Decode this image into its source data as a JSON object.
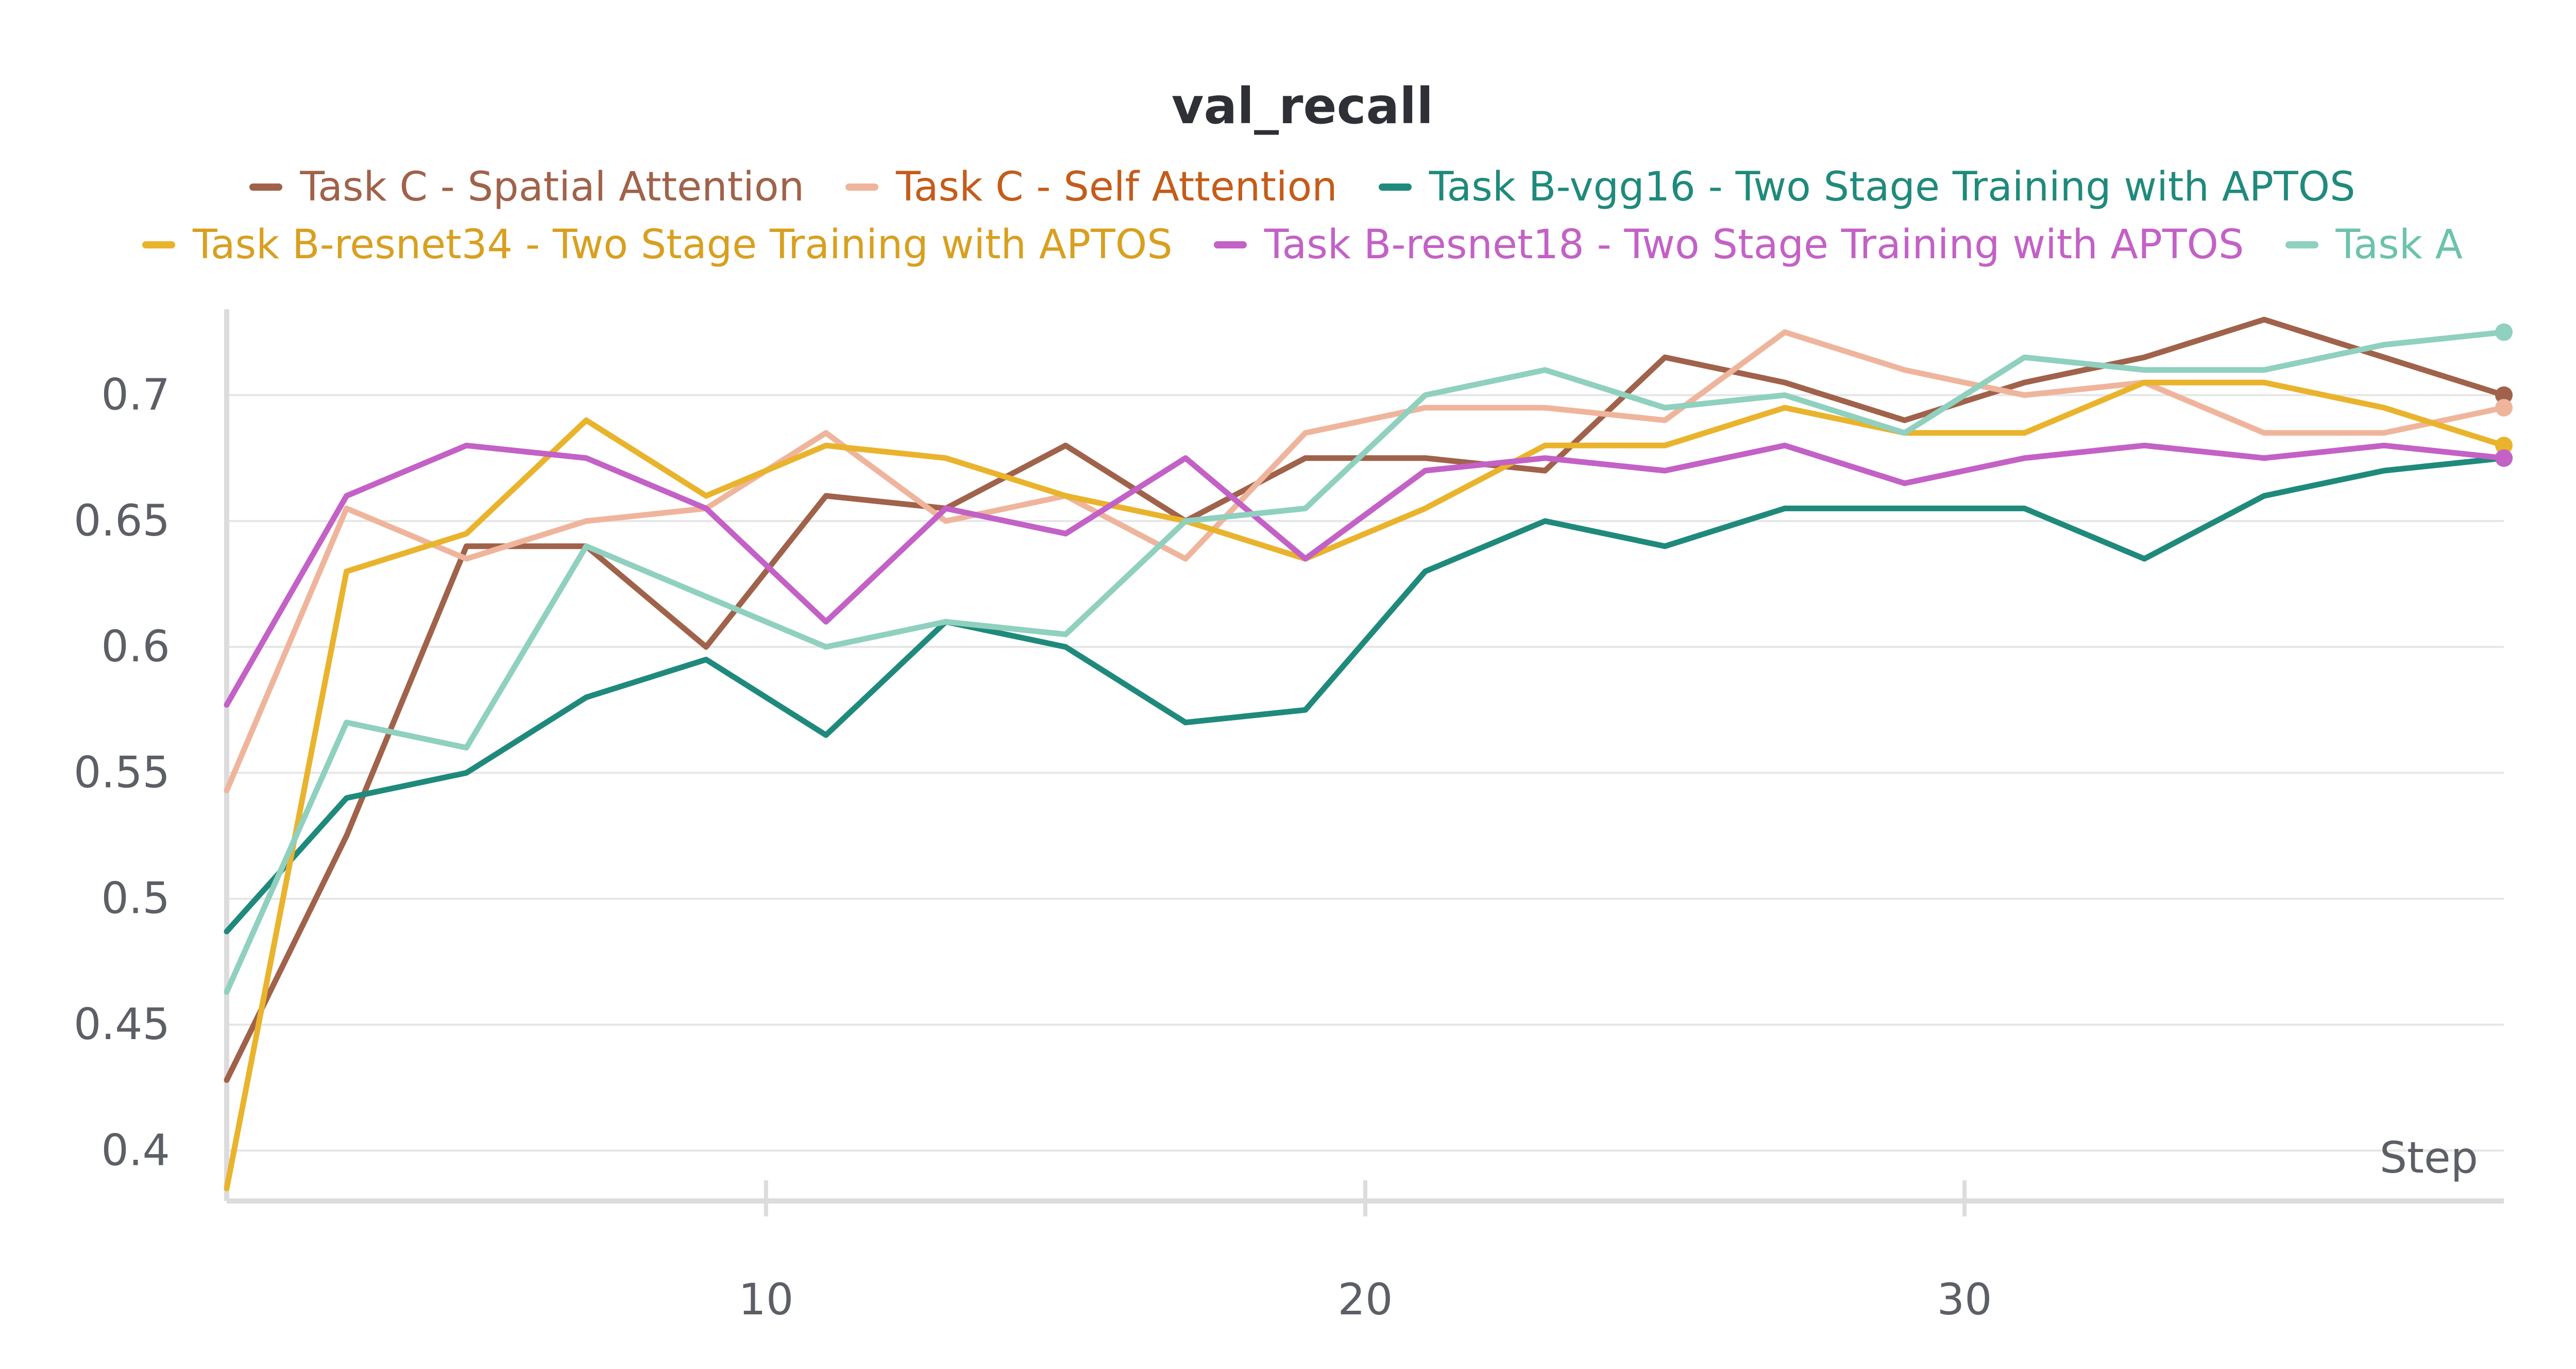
{
  "chart_data": {
    "type": "line",
    "title": "val_recall",
    "xlabel": "Step",
    "ylabel": "",
    "xlim": [
      1,
      39
    ],
    "ylim": [
      0.38,
      0.73
    ],
    "x_ticks": [
      10,
      20,
      30
    ],
    "y_ticks": [
      0.4,
      0.45,
      0.5,
      0.55,
      0.6,
      0.65,
      0.7
    ],
    "y_tick_labels": [
      "0.4",
      "0.45",
      "0.5",
      "0.55",
      "0.6",
      "0.65",
      "0.7"
    ],
    "grid": true,
    "legend_position": "top",
    "x": [
      1,
      3,
      5,
      7,
      9,
      11,
      13,
      15,
      17,
      19,
      21,
      23,
      25,
      27,
      29,
      31,
      33,
      35,
      37,
      39
    ],
    "series": [
      {
        "name": "Task C - Spatial Attention",
        "color": "#a0624a",
        "values": [
          0.428,
          0.525,
          0.64,
          0.64,
          0.6,
          0.66,
          0.655,
          0.68,
          0.65,
          0.675,
          0.675,
          0.67,
          0.715,
          0.705,
          0.69,
          0.705,
          0.715,
          0.73,
          0.715,
          0.7
        ]
      },
      {
        "name": "Task C - Self Attention",
        "color": "#efb59c",
        "label_color": "#c45c1a",
        "values": [
          0.543,
          0.655,
          0.635,
          0.65,
          0.655,
          0.685,
          0.65,
          0.66,
          0.635,
          0.685,
          0.695,
          0.695,
          0.69,
          0.725,
          0.71,
          0.7,
          0.705,
          0.685,
          0.685,
          0.695
        ]
      },
      {
        "name": "Task B-vgg16 - Two Stage Training with APTOS",
        "color": "#1f8a7b",
        "values": [
          0.487,
          0.54,
          0.55,
          0.58,
          0.595,
          0.565,
          0.61,
          0.6,
          0.57,
          0.575,
          0.63,
          0.65,
          0.64,
          0.655,
          0.655,
          0.655,
          0.635,
          0.66,
          0.67,
          0.675
        ]
      },
      {
        "name": "Task B-resnet34 - Two Stage Training with APTOS",
        "color": "#e9b32c",
        "label_color": "#d8a020",
        "values": [
          0.385,
          0.63,
          0.645,
          0.69,
          0.66,
          0.68,
          0.675,
          0.66,
          0.65,
          0.635,
          0.655,
          0.68,
          0.68,
          0.695,
          0.685,
          0.685,
          0.705,
          0.705,
          0.695,
          0.68
        ]
      },
      {
        "name": "Task B-resnet18 - Two Stage Training with APTOS",
        "color": "#c361c6",
        "values": [
          0.577,
          0.66,
          0.68,
          0.675,
          0.655,
          0.61,
          0.655,
          0.645,
          0.675,
          0.635,
          0.67,
          0.675,
          0.67,
          0.68,
          0.665,
          0.675,
          0.68,
          0.675,
          0.68,
          0.675
        ]
      },
      {
        "name": "Task A",
        "color": "#8fd0bf",
        "label_color": "#6cc2ac",
        "values": [
          0.463,
          0.57,
          0.56,
          0.64,
          0.62,
          0.6,
          0.61,
          0.605,
          0.65,
          0.655,
          0.7,
          0.71,
          0.695,
          0.7,
          0.685,
          0.715,
          0.71,
          0.71,
          0.72,
          0.725
        ]
      }
    ]
  }
}
